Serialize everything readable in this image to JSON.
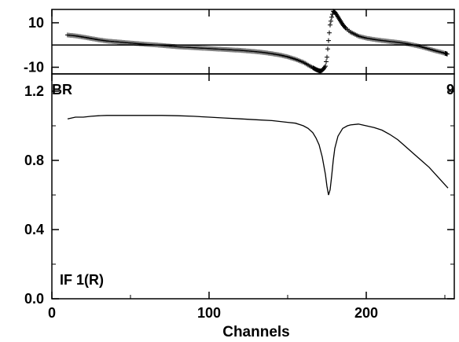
{
  "chart_data": [
    {
      "type": "scatter",
      "marker": "plus",
      "xlim": [
        0,
        256
      ],
      "ylim": [
        -13,
        16
      ],
      "yticks": [
        {
          "value": 10,
          "label": "10"
        },
        {
          "value": -10,
          "label": "-10"
        }
      ],
      "reference_line": 0,
      "x": [
        10,
        14,
        18,
        22,
        26,
        30,
        35,
        40,
        45,
        50,
        55,
        60,
        65,
        70,
        75,
        80,
        85,
        90,
        95,
        100,
        105,
        110,
        115,
        120,
        125,
        130,
        135,
        140,
        145,
        150,
        155,
        160,
        163,
        166,
        168,
        170,
        171,
        172,
        173,
        174,
        175,
        176,
        177,
        178,
        179,
        180,
        181,
        183,
        185,
        187,
        190,
        195,
        200,
        205,
        210,
        215,
        220,
        225,
        230,
        235,
        240,
        245,
        250,
        252
      ],
      "y": [
        4.5,
        4.2,
        3.8,
        3.3,
        2.8,
        2.3,
        1.8,
        1.5,
        1.2,
        0.9,
        0.6,
        0.3,
        0.1,
        -0.2,
        -0.5,
        -0.8,
        -1.0,
        -1.2,
        -1.4,
        -1.6,
        -1.8,
        -2.0,
        -2.2,
        -2.4,
        -2.7,
        -3.0,
        -3.4,
        -3.9,
        -4.5,
        -5.3,
        -6.4,
        -7.8,
        -9.0,
        -10.2,
        -11.0,
        -11.6,
        -11.7,
        -11.3,
        -10.6,
        -9.5,
        -5.5,
        2.0,
        9.0,
        12.5,
        15.2,
        14.8,
        13.8,
        11.5,
        9.2,
        7.5,
        5.8,
        4.0,
        3.1,
        2.5,
        2.0,
        1.6,
        1.2,
        0.7,
        0.0,
        -0.8,
        -1.8,
        -2.8,
        -3.7,
        -4.2
      ]
    },
    {
      "type": "line",
      "xlim": [
        0,
        256
      ],
      "ylim": [
        0,
        1.3
      ],
      "x": [
        10,
        15,
        20,
        25,
        30,
        35,
        40,
        50,
        60,
        70,
        80,
        90,
        100,
        110,
        120,
        130,
        140,
        150,
        155,
        160,
        163,
        166,
        168,
        170,
        172,
        174,
        175,
        176,
        177,
        178,
        179,
        180,
        182,
        185,
        188,
        190,
        195,
        200,
        205,
        210,
        215,
        220,
        225,
        230,
        235,
        240,
        245,
        250,
        252
      ],
      "y": [
        1.04,
        1.05,
        1.05,
        1.055,
        1.058,
        1.06,
        1.06,
        1.06,
        1.06,
        1.06,
        1.058,
        1.055,
        1.05,
        1.045,
        1.04,
        1.035,
        1.03,
        1.02,
        1.015,
        1.0,
        0.985,
        0.96,
        0.93,
        0.89,
        0.82,
        0.72,
        0.65,
        0.6,
        0.63,
        0.71,
        0.8,
        0.87,
        0.94,
        0.985,
        1.0,
        1.005,
        1.01,
        1.0,
        0.99,
        0.975,
        0.95,
        0.92,
        0.88,
        0.84,
        0.8,
        0.76,
        0.71,
        0.66,
        0.64
      ],
      "xticks": [
        {
          "value": 0,
          "label": "0"
        },
        {
          "value": 100,
          "label": "100"
        },
        {
          "value": 200,
          "label": "200"
        }
      ],
      "yticks": [
        {
          "value": 0,
          "label": "0.0"
        },
        {
          "value": 0.4,
          "label": "0.4"
        },
        {
          "value": 0.8,
          "label": "0.8"
        },
        {
          "value": 1.2,
          "label": "1.2"
        }
      ],
      "xlabel": "Channels"
    }
  ],
  "labels": {
    "top_left": "BR",
    "top_right": "9",
    "bottom_left": "IF 1(R)"
  }
}
